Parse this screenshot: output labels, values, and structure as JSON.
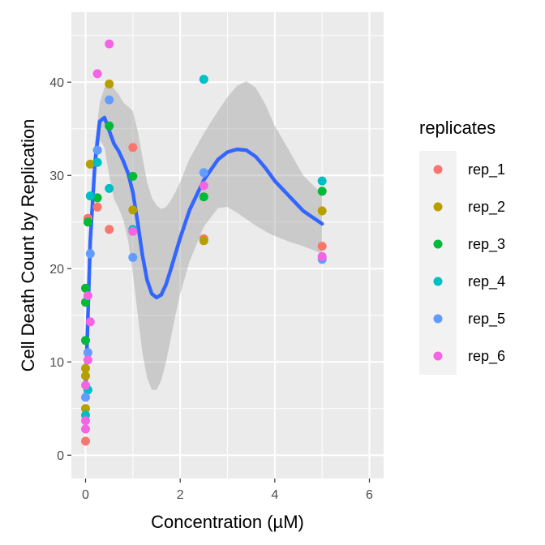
{
  "chart_data": {
    "type": "scatter",
    "xlabel": "Concentration (µM)",
    "ylabel": "Cell Death Count by Replication",
    "xlim": [
      -0.3,
      6.3
    ],
    "ylim": [
      -2.5,
      47.5
    ],
    "x_ticks": [
      0,
      2,
      4,
      6
    ],
    "y_ticks": [
      0,
      10,
      20,
      30,
      40
    ],
    "x_tick_labels": [
      "0",
      "2",
      "4",
      "6"
    ],
    "y_tick_labels": [
      "0",
      "10",
      "20",
      "30",
      "40"
    ],
    "grid": true,
    "legend": {
      "title": "replicates",
      "position": "right"
    },
    "series": [
      {
        "name": "rep_1",
        "color": "#F8766D",
        "points": [
          [
            0,
            1.5
          ],
          [
            0.05,
            25.4
          ],
          [
            0.25,
            26.6
          ],
          [
            0.5,
            24.2
          ],
          [
            1,
            33.0
          ],
          [
            2.5,
            23.2
          ],
          [
            5,
            22.4
          ]
        ]
      },
      {
        "name": "rep_2",
        "color": "#B79F00",
        "points": [
          [
            0,
            5.0
          ],
          [
            0,
            8.5
          ],
          [
            0,
            9.3
          ],
          [
            0.1,
            31.2
          ],
          [
            0.5,
            39.8
          ],
          [
            1,
            26.3
          ],
          [
            2.5,
            23.0
          ],
          [
            5,
            26.2
          ]
        ]
      },
      {
        "name": "rep_3",
        "color": "#00BA38",
        "points": [
          [
            0,
            12.3
          ],
          [
            0,
            16.4
          ],
          [
            0,
            17.9
          ],
          [
            0.05,
            25.0
          ],
          [
            0.25,
            27.6
          ],
          [
            0.5,
            35.3
          ],
          [
            1,
            29.9
          ],
          [
            2.5,
            27.7
          ],
          [
            5,
            28.3
          ]
        ]
      },
      {
        "name": "rep_4",
        "color": "#00BFC4",
        "points": [
          [
            0,
            4.3
          ],
          [
            0.05,
            7.0
          ],
          [
            0.1,
            27.8
          ],
          [
            0.25,
            31.4
          ],
          [
            0.5,
            28.6
          ],
          [
            1,
            24.2
          ],
          [
            2.5,
            40.3
          ],
          [
            5,
            29.4
          ]
        ]
      },
      {
        "name": "rep_5",
        "color": "#619CFF",
        "points": [
          [
            0,
            6.2
          ],
          [
            0.05,
            11.0
          ],
          [
            0.1,
            21.6
          ],
          [
            0.25,
            32.7
          ],
          [
            0.5,
            38.1
          ],
          [
            1,
            21.2
          ],
          [
            2.5,
            30.3
          ],
          [
            5,
            21.0
          ]
        ]
      },
      {
        "name": "rep_6",
        "color": "#F564E3",
        "points": [
          [
            0,
            2.8
          ],
          [
            0,
            3.7
          ],
          [
            0,
            7.5
          ],
          [
            0.05,
            10.2
          ],
          [
            0.05,
            17.1
          ],
          [
            0.1,
            14.3
          ],
          [
            0.25,
            40.9
          ],
          [
            0.5,
            44.1
          ],
          [
            1,
            24.0
          ],
          [
            2.5,
            28.9
          ],
          [
            5,
            21.3
          ]
        ]
      }
    ],
    "smooth": {
      "method": "loess",
      "color": "#3366FF",
      "band_color": "#999999",
      "x": [
        0,
        0.1,
        0.2,
        0.3,
        0.4,
        0.5,
        0.6,
        0.7,
        0.8,
        0.9,
        1.0,
        1.1,
        1.2,
        1.3,
        1.4,
        1.5,
        1.6,
        1.7,
        1.8,
        1.9,
        2.0,
        2.2,
        2.5,
        2.8,
        3.0,
        3.2,
        3.4,
        3.6,
        3.8,
        4.0,
        4.3,
        4.6,
        5.0
      ],
      "fit": [
        6.8,
        23.0,
        31.5,
        35.8,
        36.2,
        34.8,
        33.4,
        32.6,
        31.5,
        30.2,
        28.2,
        25.0,
        21.5,
        18.8,
        17.3,
        16.9,
        17.2,
        18.3,
        19.9,
        21.6,
        23.3,
        26.3,
        29.5,
        31.7,
        32.5,
        32.8,
        32.7,
        32.0,
        30.8,
        29.4,
        27.8,
        26.2,
        24.8
      ],
      "lower": [
        6.3,
        21.0,
        29.5,
        33.8,
        33.0,
        30.0,
        27.5,
        26.5,
        25.2,
        23.0,
        19.5,
        15.2,
        11.0,
        8.3,
        7.0,
        7.0,
        8.0,
        10.0,
        12.5,
        15.0,
        17.3,
        20.8,
        24.5,
        26.5,
        26.6,
        26.0,
        25.3,
        24.6,
        24.0,
        23.5,
        22.9,
        22.4,
        21.6
      ],
      "upper": [
        7.3,
        25.0,
        33.5,
        37.8,
        39.4,
        40.0,
        39.3,
        38.7,
        37.8,
        37.4,
        36.9,
        34.8,
        32.0,
        29.3,
        27.6,
        26.8,
        26.4,
        26.6,
        27.3,
        28.2,
        29.3,
        31.8,
        34.5,
        36.9,
        38.4,
        39.6,
        40.1,
        39.4,
        37.6,
        35.3,
        32.7,
        30.0,
        28.0
      ]
    }
  }
}
